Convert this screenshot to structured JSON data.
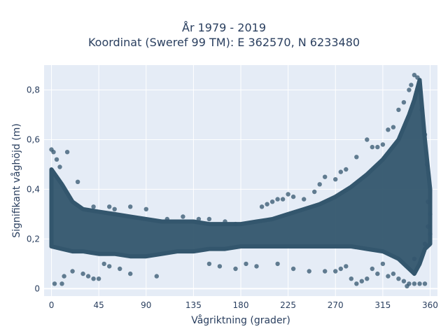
{
  "chart_data": {
    "type": "scatter",
    "title_lines": [
      "År 1979 - 2019",
      "Koordinat (Sweref 99 TM): E 362570, N 6233480"
    ],
    "xlabel": "Vågriktning (grader)",
    "ylabel": "Signifikant våghöjd (m)",
    "xlim": [
      -7,
      367
    ],
    "ylim": [
      -0.03,
      0.9
    ],
    "xticks": [
      0,
      45,
      90,
      135,
      180,
      225,
      270,
      315,
      360
    ],
    "xtick_labels": [
      "0",
      "45",
      "90",
      "135",
      "180",
      "225",
      "270",
      "315",
      "360"
    ],
    "yticks": [
      0,
      0.2,
      0.4,
      0.6,
      0.8
    ],
    "ytick_labels": [
      "0",
      "0,2",
      "0,4",
      "0,6",
      "0,8"
    ],
    "grid": true,
    "background_color": "#e5ecf6",
    "marker_color": "#33566d",
    "density_band": {
      "x": [
        0,
        10,
        20,
        30,
        45,
        60,
        75,
        90,
        105,
        120,
        135,
        150,
        165,
        180,
        195,
        210,
        225,
        240,
        255,
        270,
        285,
        300,
        315,
        330,
        340,
        345,
        350,
        355,
        360
      ],
      "low": [
        0.17,
        0.16,
        0.15,
        0.15,
        0.14,
        0.14,
        0.13,
        0.13,
        0.14,
        0.15,
        0.15,
        0.16,
        0.16,
        0.17,
        0.17,
        0.17,
        0.17,
        0.17,
        0.17,
        0.17,
        0.17,
        0.16,
        0.15,
        0.12,
        0.08,
        0.06,
        0.1,
        0.16,
        0.18
      ],
      "high": [
        0.48,
        0.42,
        0.35,
        0.32,
        0.31,
        0.3,
        0.29,
        0.28,
        0.27,
        0.27,
        0.27,
        0.26,
        0.26,
        0.26,
        0.27,
        0.28,
        0.3,
        0.32,
        0.34,
        0.37,
        0.41,
        0.46,
        0.52,
        0.6,
        0.7,
        0.76,
        0.84,
        0.6,
        0.4
      ]
    },
    "points": [
      [
        0,
        0.56
      ],
      [
        2,
        0.55
      ],
      [
        15,
        0.55
      ],
      [
        8,
        0.49
      ],
      [
        5,
        0.52
      ],
      [
        3,
        0.02
      ],
      [
        10,
        0.02
      ],
      [
        12,
        0.05
      ],
      [
        20,
        0.07
      ],
      [
        30,
        0.06
      ],
      [
        35,
        0.05
      ],
      [
        40,
        0.04
      ],
      [
        45,
        0.04
      ],
      [
        50,
        0.1
      ],
      [
        55,
        0.09
      ],
      [
        65,
        0.08
      ],
      [
        75,
        0.06
      ],
      [
        100,
        0.05
      ],
      [
        25,
        0.43
      ],
      [
        40,
        0.33
      ],
      [
        55,
        0.33
      ],
      [
        60,
        0.32
      ],
      [
        75,
        0.33
      ],
      [
        90,
        0.32
      ],
      [
        110,
        0.28
      ],
      [
        125,
        0.29
      ],
      [
        140,
        0.28
      ],
      [
        150,
        0.28
      ],
      [
        165,
        0.27
      ],
      [
        175,
        0.26
      ],
      [
        150,
        0.1
      ],
      [
        160,
        0.09
      ],
      [
        175,
        0.08
      ],
      [
        185,
        0.1
      ],
      [
        195,
        0.09
      ],
      [
        200,
        0.33
      ],
      [
        205,
        0.34
      ],
      [
        210,
        0.35
      ],
      [
        215,
        0.36
      ],
      [
        220,
        0.36
      ],
      [
        225,
        0.38
      ],
      [
        230,
        0.37
      ],
      [
        240,
        0.36
      ],
      [
        250,
        0.39
      ],
      [
        255,
        0.42
      ],
      [
        260,
        0.45
      ],
      [
        270,
        0.44
      ],
      [
        275,
        0.47
      ],
      [
        280,
        0.48
      ],
      [
        290,
        0.53
      ],
      [
        300,
        0.6
      ],
      [
        305,
        0.57
      ],
      [
        310,
        0.57
      ],
      [
        315,
        0.58
      ],
      [
        320,
        0.64
      ],
      [
        325,
        0.65
      ],
      [
        330,
        0.72
      ],
      [
        335,
        0.75
      ],
      [
        340,
        0.8
      ],
      [
        342,
        0.82
      ],
      [
        345,
        0.86
      ],
      [
        348,
        0.85
      ],
      [
        350,
        0.8
      ],
      [
        352,
        0.72
      ],
      [
        355,
        0.62
      ],
      [
        357,
        0.5
      ],
      [
        215,
        0.1
      ],
      [
        230,
        0.08
      ],
      [
        245,
        0.07
      ],
      [
        260,
        0.07
      ],
      [
        270,
        0.07
      ],
      [
        275,
        0.08
      ],
      [
        280,
        0.09
      ],
      [
        285,
        0.04
      ],
      [
        290,
        0.02
      ],
      [
        295,
        0.03
      ],
      [
        300,
        0.04
      ],
      [
        305,
        0.08
      ],
      [
        310,
        0.06
      ],
      [
        315,
        0.1
      ],
      [
        320,
        0.05
      ],
      [
        325,
        0.06
      ],
      [
        330,
        0.04
      ],
      [
        335,
        0.03
      ],
      [
        338,
        0.01
      ],
      [
        340,
        0.02
      ],
      [
        345,
        0.02
      ],
      [
        350,
        0.02
      ],
      [
        355,
        0.02
      ],
      [
        345,
        0.12
      ],
      [
        355,
        0.18
      ],
      [
        358,
        0.25
      ],
      [
        360,
        0.3
      ],
      [
        360,
        0.22
      ],
      [
        358,
        0.35
      ]
    ]
  }
}
